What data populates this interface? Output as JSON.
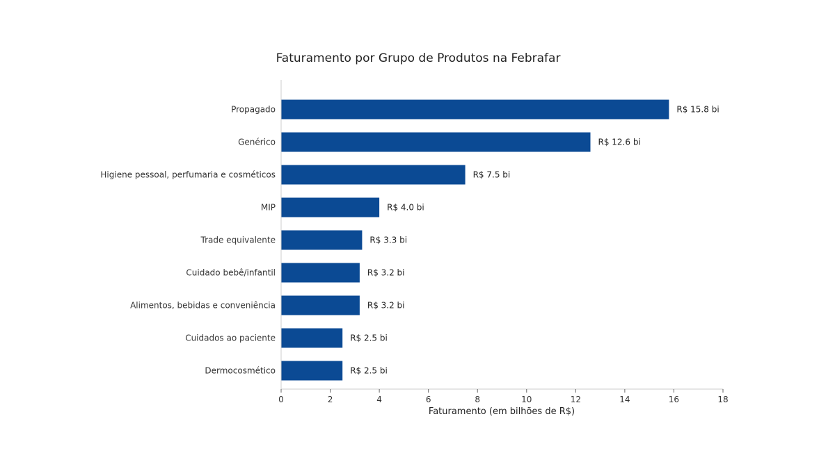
{
  "chart_data": {
    "type": "bar",
    "orientation": "horizontal",
    "title": "Faturamento por Grupo de Produtos na Febrafar",
    "xlabel": "Faturamento (em bilhões de R$)",
    "ylabel": "",
    "xlim": [
      0,
      18
    ],
    "xticks": [
      0,
      2,
      4,
      6,
      8,
      10,
      12,
      14,
      16,
      18
    ],
    "grid": false,
    "bar_color": "#0b4a94",
    "categories": [
      "Propagado",
      "Genérico",
      "Higiene pessoal, perfumaria e cosméticos",
      "MIP",
      "Trade equivalente",
      "Cuidado bebê/infantil",
      "Alimentos, bebidas e conveniência",
      "Cuidados ao paciente",
      "Dermocosmético"
    ],
    "values": [
      15.8,
      12.6,
      7.5,
      4.0,
      3.3,
      3.2,
      3.2,
      2.5,
      2.5
    ],
    "data_labels": [
      "R$ 15.8 bi",
      "R$ 12.6 bi",
      "R$ 7.5 bi",
      "R$ 4.0 bi",
      "R$ 3.3 bi",
      "R$ 3.2 bi",
      "R$ 3.2 bi",
      "R$ 2.5 bi",
      "R$ 2.5 bi"
    ]
  }
}
